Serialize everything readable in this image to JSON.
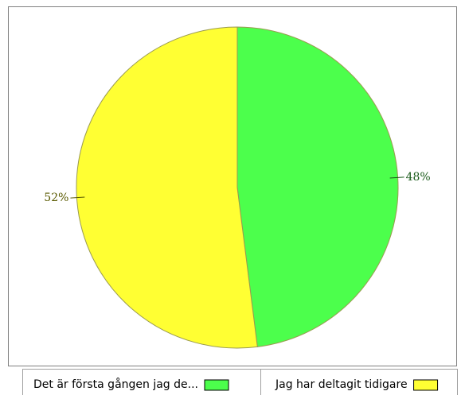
{
  "chart_data": {
    "type": "pie",
    "categories": [
      "Det är första gången jag de...",
      "Jag har deltagit tidigare"
    ],
    "values": [
      48,
      52
    ],
    "value_labels": [
      "48%",
      "52%"
    ],
    "colors": [
      "#4cff4c",
      "#ffff33"
    ],
    "label_colors": [
      "#1a5a1a",
      "#5a5a00"
    ],
    "legend": "bottom"
  }
}
